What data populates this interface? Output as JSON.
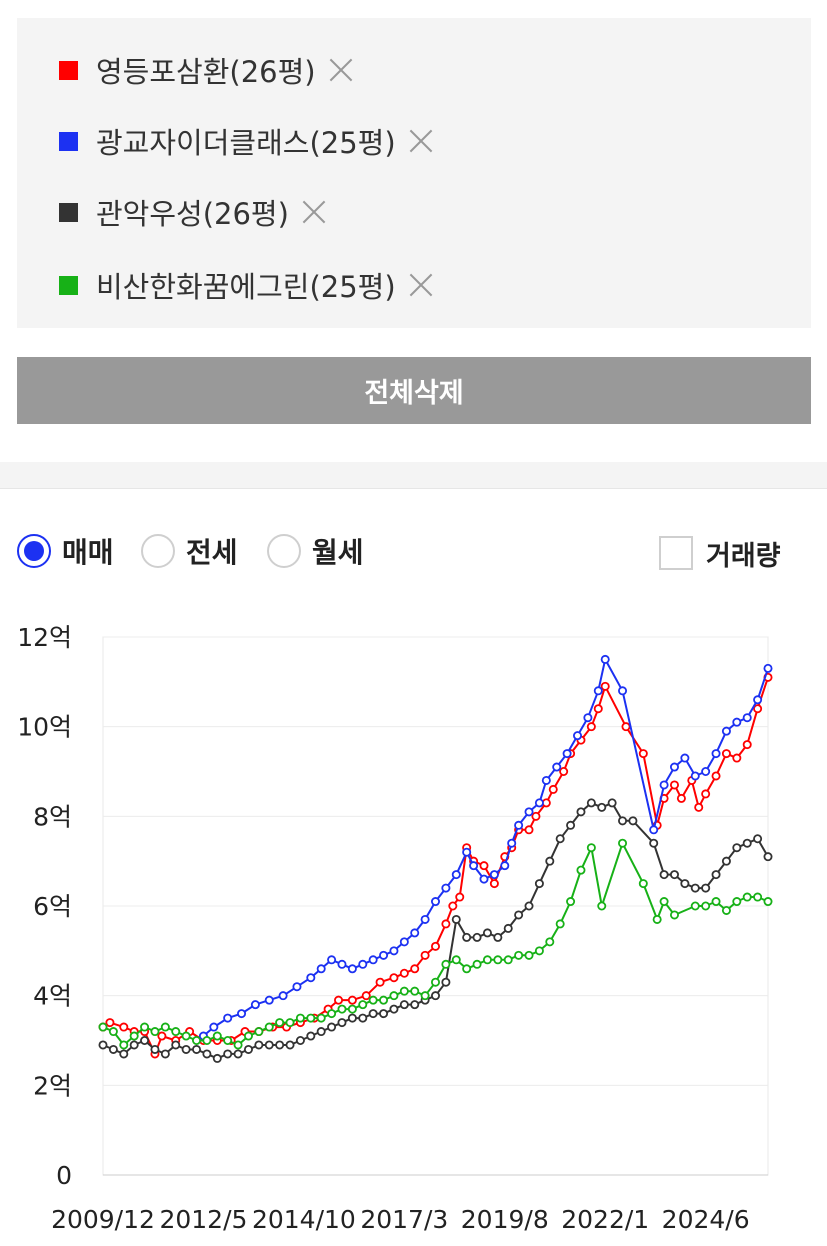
{
  "legend": {
    "items": [
      {
        "label": "영등포삼환(26평)",
        "color": "#ff0000"
      },
      {
        "label": "광교자이더클래스(25평)",
        "color": "#1c31f2"
      },
      {
        "label": "관악우성(26평)",
        "color": "#333333"
      },
      {
        "label": "비산한화꿈에그린(25평)",
        "color": "#17b117"
      }
    ]
  },
  "clear_all_label": "전체삭제",
  "trade_type": {
    "options": [
      "매매",
      "전세",
      "월세"
    ],
    "selected": "매매"
  },
  "volume_label": "거래량",
  "chart_data": {
    "type": "line",
    "x_range": [
      "2009-12",
      "2025-12"
    ],
    "y_range": [
      0,
      12
    ],
    "y_unit": "억",
    "y_ticks": [
      {
        "value": 0,
        "label": "0"
      },
      {
        "value": 2,
        "label": "2억"
      },
      {
        "value": 4,
        "label": "4억"
      },
      {
        "value": 6,
        "label": "6억"
      },
      {
        "value": 8,
        "label": "8억"
      },
      {
        "value": 10,
        "label": "10억"
      },
      {
        "value": 12,
        "label": "12억"
      }
    ],
    "x_ticks": [
      {
        "date": "2009-12",
        "label": "2009/12"
      },
      {
        "date": "2012-05",
        "label": "2012/5"
      },
      {
        "date": "2014-10",
        "label": "2014/10"
      },
      {
        "date": "2017-03",
        "label": "2017/3"
      },
      {
        "date": "2019-08",
        "label": "2019/8"
      },
      {
        "date": "2022-01",
        "label": "2022/1"
      },
      {
        "date": "2024-06",
        "label": "2024/6"
      }
    ],
    "grid": true,
    "series": [
      {
        "name": "영등포삼환(26평)",
        "color": "#ff0000",
        "points": [
          [
            "2009-12",
            3.3
          ],
          [
            "2010-02",
            3.4
          ],
          [
            "2010-06",
            3.3
          ],
          [
            "2010-09",
            3.2
          ],
          [
            "2010-12",
            3.2
          ],
          [
            "2011-03",
            2.7
          ],
          [
            "2011-05",
            3.1
          ],
          [
            "2011-09",
            3.0
          ],
          [
            "2012-01",
            3.2
          ],
          [
            "2012-05",
            3.0
          ],
          [
            "2012-09",
            3.0
          ],
          [
            "2013-01",
            3.0
          ],
          [
            "2013-05",
            3.2
          ],
          [
            "2013-09",
            3.2
          ],
          [
            "2014-01",
            3.3
          ],
          [
            "2014-05",
            3.3
          ],
          [
            "2014-09",
            3.4
          ],
          [
            "2015-01",
            3.5
          ],
          [
            "2015-05",
            3.7
          ],
          [
            "2015-08",
            3.9
          ],
          [
            "2015-12",
            3.9
          ],
          [
            "2016-04",
            4.0
          ],
          [
            "2016-08",
            4.3
          ],
          [
            "2016-12",
            4.4
          ],
          [
            "2017-03",
            4.5
          ],
          [
            "2017-06",
            4.6
          ],
          [
            "2017-09",
            4.9
          ],
          [
            "2017-12",
            5.1
          ],
          [
            "2018-03",
            5.6
          ],
          [
            "2018-05",
            6.0
          ],
          [
            "2018-07",
            6.2
          ],
          [
            "2018-09",
            7.3
          ],
          [
            "2018-11",
            7.0
          ],
          [
            "2019-02",
            6.9
          ],
          [
            "2019-05",
            6.5
          ],
          [
            "2019-08",
            7.1
          ],
          [
            "2019-10",
            7.3
          ],
          [
            "2019-12",
            7.7
          ],
          [
            "2020-03",
            7.7
          ],
          [
            "2020-05",
            8.0
          ],
          [
            "2020-08",
            8.3
          ],
          [
            "2020-10",
            8.6
          ],
          [
            "2021-01",
            9.0
          ],
          [
            "2021-03",
            9.4
          ],
          [
            "2021-06",
            9.7
          ],
          [
            "2021-09",
            10.0
          ],
          [
            "2021-11",
            10.4
          ],
          [
            "2022-01",
            10.9
          ],
          [
            "2022-07",
            10.0
          ],
          [
            "2022-12",
            9.4
          ],
          [
            "2023-04",
            7.8
          ],
          [
            "2023-06",
            8.4
          ],
          [
            "2023-09",
            8.7
          ],
          [
            "2023-11",
            8.4
          ],
          [
            "2024-02",
            8.8
          ],
          [
            "2024-04",
            8.2
          ],
          [
            "2024-06",
            8.5
          ],
          [
            "2024-09",
            8.9
          ],
          [
            "2024-12",
            9.4
          ],
          [
            "2025-03",
            9.3
          ],
          [
            "2025-06",
            9.6
          ],
          [
            "2025-09",
            10.4
          ],
          [
            "2025-12",
            11.1
          ]
        ]
      },
      {
        "name": "광교자이더클래스(25평)",
        "color": "#1c31f2",
        "points": [
          [
            "2012-05",
            3.1
          ],
          [
            "2012-08",
            3.3
          ],
          [
            "2012-12",
            3.5
          ],
          [
            "2013-04",
            3.6
          ],
          [
            "2013-08",
            3.8
          ],
          [
            "2013-12",
            3.9
          ],
          [
            "2014-04",
            4.0
          ],
          [
            "2014-08",
            4.2
          ],
          [
            "2014-12",
            4.4
          ],
          [
            "2015-03",
            4.6
          ],
          [
            "2015-06",
            4.8
          ],
          [
            "2015-09",
            4.7
          ],
          [
            "2015-12",
            4.6
          ],
          [
            "2016-03",
            4.7
          ],
          [
            "2016-06",
            4.8
          ],
          [
            "2016-09",
            4.9
          ],
          [
            "2016-12",
            5.0
          ],
          [
            "2017-03",
            5.2
          ],
          [
            "2017-06",
            5.4
          ],
          [
            "2017-09",
            5.7
          ],
          [
            "2017-12",
            6.1
          ],
          [
            "2018-03",
            6.4
          ],
          [
            "2018-06",
            6.7
          ],
          [
            "2018-09",
            7.2
          ],
          [
            "2018-11",
            6.9
          ],
          [
            "2019-02",
            6.6
          ],
          [
            "2019-05",
            6.7
          ],
          [
            "2019-08",
            6.9
          ],
          [
            "2019-10",
            7.4
          ],
          [
            "2019-12",
            7.8
          ],
          [
            "2020-03",
            8.1
          ],
          [
            "2020-06",
            8.3
          ],
          [
            "2020-08",
            8.8
          ],
          [
            "2020-11",
            9.1
          ],
          [
            "2021-02",
            9.4
          ],
          [
            "2021-05",
            9.8
          ],
          [
            "2021-08",
            10.2
          ],
          [
            "2021-11",
            10.8
          ],
          [
            "2022-01",
            11.5
          ],
          [
            "2022-06",
            10.8
          ],
          [
            "2023-03",
            7.7
          ],
          [
            "2023-06",
            8.7
          ],
          [
            "2023-09",
            9.1
          ],
          [
            "2023-12",
            9.3
          ],
          [
            "2024-03",
            8.9
          ],
          [
            "2024-06",
            9.0
          ],
          [
            "2024-09",
            9.4
          ],
          [
            "2024-12",
            9.9
          ],
          [
            "2025-03",
            10.1
          ],
          [
            "2025-06",
            10.2
          ],
          [
            "2025-09",
            10.6
          ],
          [
            "2025-12",
            11.3
          ]
        ]
      },
      {
        "name": "관악우성(26평)",
        "color": "#333333",
        "points": [
          [
            "2009-12",
            2.9
          ],
          [
            "2010-03",
            2.8
          ],
          [
            "2010-06",
            2.7
          ],
          [
            "2010-09",
            2.9
          ],
          [
            "2010-12",
            3.0
          ],
          [
            "2011-03",
            2.8
          ],
          [
            "2011-06",
            2.7
          ],
          [
            "2011-09",
            2.9
          ],
          [
            "2011-12",
            2.8
          ],
          [
            "2012-03",
            2.8
          ],
          [
            "2012-06",
            2.7
          ],
          [
            "2012-09",
            2.6
          ],
          [
            "2012-12",
            2.7
          ],
          [
            "2013-03",
            2.7
          ],
          [
            "2013-06",
            2.8
          ],
          [
            "2013-09",
            2.9
          ],
          [
            "2013-12",
            2.9
          ],
          [
            "2014-03",
            2.9
          ],
          [
            "2014-06",
            2.9
          ],
          [
            "2014-09",
            3.0
          ],
          [
            "2014-12",
            3.1
          ],
          [
            "2015-03",
            3.2
          ],
          [
            "2015-06",
            3.3
          ],
          [
            "2015-09",
            3.4
          ],
          [
            "2015-12",
            3.5
          ],
          [
            "2016-03",
            3.5
          ],
          [
            "2016-06",
            3.6
          ],
          [
            "2016-09",
            3.6
          ],
          [
            "2016-12",
            3.7
          ],
          [
            "2017-03",
            3.8
          ],
          [
            "2017-06",
            3.8
          ],
          [
            "2017-09",
            3.9
          ],
          [
            "2017-12",
            4.0
          ],
          [
            "2018-03",
            4.3
          ],
          [
            "2018-06",
            5.7
          ],
          [
            "2018-09",
            5.3
          ],
          [
            "2018-12",
            5.3
          ],
          [
            "2019-03",
            5.4
          ],
          [
            "2019-06",
            5.3
          ],
          [
            "2019-09",
            5.5
          ],
          [
            "2019-12",
            5.8
          ],
          [
            "2020-03",
            6.0
          ],
          [
            "2020-06",
            6.5
          ],
          [
            "2020-09",
            7.0
          ],
          [
            "2020-12",
            7.5
          ],
          [
            "2021-03",
            7.8
          ],
          [
            "2021-06",
            8.1
          ],
          [
            "2021-09",
            8.3
          ],
          [
            "2021-12",
            8.2
          ],
          [
            "2022-03",
            8.3
          ],
          [
            "2022-06",
            7.9
          ],
          [
            "2022-09",
            7.9
          ],
          [
            "2023-03",
            7.4
          ],
          [
            "2023-06",
            6.7
          ],
          [
            "2023-09",
            6.7
          ],
          [
            "2023-12",
            6.5
          ],
          [
            "2024-03",
            6.4
          ],
          [
            "2024-06",
            6.4
          ],
          [
            "2024-09",
            6.7
          ],
          [
            "2024-12",
            7.0
          ],
          [
            "2025-03",
            7.3
          ],
          [
            "2025-06",
            7.4
          ],
          [
            "2025-09",
            7.5
          ],
          [
            "2025-12",
            7.1
          ]
        ]
      },
      {
        "name": "비산한화꿈에그린(25평)",
        "color": "#17b117",
        "points": [
          [
            "2009-12",
            3.3
          ],
          [
            "2010-03",
            3.2
          ],
          [
            "2010-06",
            2.9
          ],
          [
            "2010-09",
            3.1
          ],
          [
            "2010-12",
            3.3
          ],
          [
            "2011-03",
            3.2
          ],
          [
            "2011-06",
            3.3
          ],
          [
            "2011-09",
            3.2
          ],
          [
            "2011-12",
            3.1
          ],
          [
            "2012-03",
            3.0
          ],
          [
            "2012-06",
            3.0
          ],
          [
            "2012-09",
            3.1
          ],
          [
            "2012-12",
            3.0
          ],
          [
            "2013-03",
            2.9
          ],
          [
            "2013-06",
            3.1
          ],
          [
            "2013-09",
            3.2
          ],
          [
            "2013-12",
            3.3
          ],
          [
            "2014-03",
            3.4
          ],
          [
            "2014-06",
            3.4
          ],
          [
            "2014-09",
            3.5
          ],
          [
            "2014-12",
            3.5
          ],
          [
            "2015-03",
            3.5
          ],
          [
            "2015-06",
            3.6
          ],
          [
            "2015-09",
            3.7
          ],
          [
            "2015-12",
            3.7
          ],
          [
            "2016-03",
            3.8
          ],
          [
            "2016-06",
            3.9
          ],
          [
            "2016-09",
            3.9
          ],
          [
            "2016-12",
            4.0
          ],
          [
            "2017-03",
            4.1
          ],
          [
            "2017-06",
            4.1
          ],
          [
            "2017-09",
            4.0
          ],
          [
            "2017-12",
            4.3
          ],
          [
            "2018-03",
            4.7
          ],
          [
            "2018-06",
            4.8
          ],
          [
            "2018-09",
            4.6
          ],
          [
            "2018-12",
            4.7
          ],
          [
            "2019-03",
            4.8
          ],
          [
            "2019-06",
            4.8
          ],
          [
            "2019-09",
            4.8
          ],
          [
            "2019-12",
            4.9
          ],
          [
            "2020-03",
            4.9
          ],
          [
            "2020-06",
            5.0
          ],
          [
            "2020-09",
            5.2
          ],
          [
            "2020-12",
            5.6
          ],
          [
            "2021-03",
            6.1
          ],
          [
            "2021-06",
            6.8
          ],
          [
            "2021-09",
            7.3
          ],
          [
            "2021-12",
            6.0
          ],
          [
            "2022-06",
            7.4
          ],
          [
            "2022-12",
            6.5
          ],
          [
            "2023-04",
            5.7
          ],
          [
            "2023-06",
            6.1
          ],
          [
            "2023-09",
            5.8
          ],
          [
            "2024-03",
            6.0
          ],
          [
            "2024-06",
            6.0
          ],
          [
            "2024-09",
            6.1
          ],
          [
            "2024-12",
            5.9
          ],
          [
            "2025-03",
            6.1
          ],
          [
            "2025-06",
            6.2
          ],
          [
            "2025-09",
            6.2
          ],
          [
            "2025-12",
            6.1
          ]
        ]
      }
    ]
  }
}
